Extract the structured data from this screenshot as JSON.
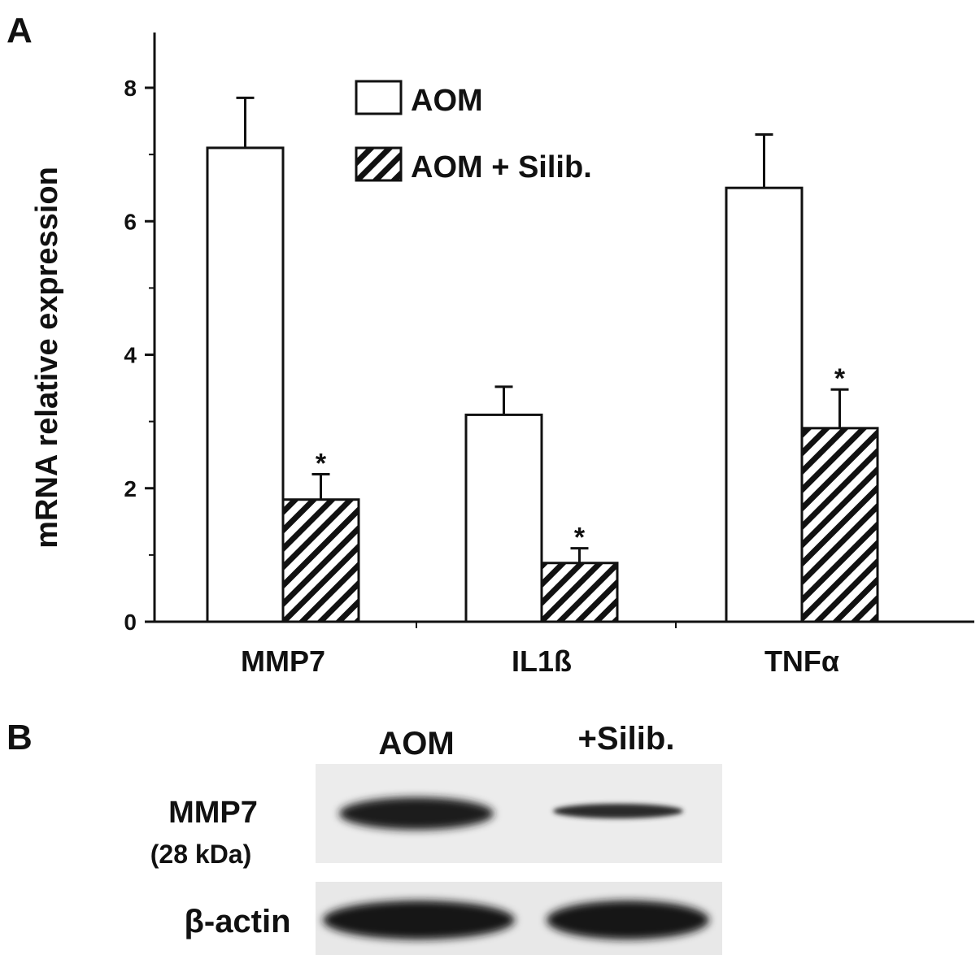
{
  "panel_a_label": "A",
  "panel_b_label": "B",
  "chart_data": {
    "type": "bar",
    "ylabel": "mRNA relative expression",
    "categories": [
      "MMP7",
      "IL1ß",
      "TNFα"
    ],
    "ylim": [
      0,
      8
    ],
    "yticks": [
      "0",
      "2",
      "4",
      "6",
      "8"
    ],
    "legend_position": "top-center",
    "series": [
      {
        "name": "AOM",
        "pattern": "open",
        "values": [
          7.1,
          3.1,
          6.5
        ],
        "errors": [
          0.75,
          0.42,
          0.8
        ],
        "significant": [
          false,
          false,
          false
        ]
      },
      {
        "name": "AOM + Silib.",
        "pattern": "hatched",
        "values": [
          1.83,
          0.88,
          2.9
        ],
        "errors": [
          0.38,
          0.22,
          0.58
        ],
        "significant": [
          true,
          true,
          true
        ]
      }
    ],
    "significance_marker": "*"
  },
  "blot": {
    "lane_labels": [
      "AOM",
      "+Silib."
    ],
    "rows": [
      {
        "label": "MMP7",
        "sublabel": "(28 kDa)"
      },
      {
        "label": "β-actin"
      }
    ]
  },
  "colors": {
    "ink": "#111111",
    "open_fill": "#ffffff"
  }
}
